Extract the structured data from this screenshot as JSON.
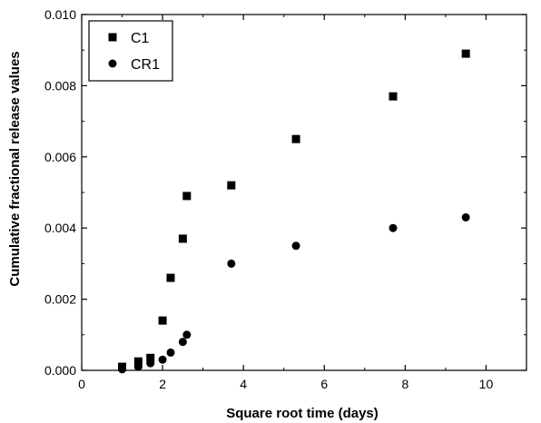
{
  "chart_data": {
    "type": "scatter",
    "title": "",
    "xlabel": "Square root time (days)",
    "ylabel": "Cumulative fractional release values",
    "xlim": [
      0,
      11
    ],
    "ylim": [
      0,
      0.01
    ],
    "xticks": [
      0,
      2,
      4,
      6,
      8,
      10
    ],
    "xtick_labels": [
      "0",
      "2",
      "4",
      "6",
      "8",
      "10"
    ],
    "yticks": [
      0,
      0.002,
      0.004,
      0.006,
      0.008,
      0.01
    ],
    "ytick_labels": [
      "0.000",
      "0.002",
      "0.004",
      "0.006",
      "0.008",
      "0.010"
    ],
    "grid": false,
    "legend_position": "top-left",
    "series": [
      {
        "name": "C1",
        "marker": "square",
        "color": "#000000",
        "points": [
          {
            "x": 1.0,
            "y": 0.0001
          },
          {
            "x": 1.4,
            "y": 0.00025
          },
          {
            "x": 1.7,
            "y": 0.00035
          },
          {
            "x": 2.0,
            "y": 0.0014
          },
          {
            "x": 2.2,
            "y": 0.0026
          },
          {
            "x": 2.5,
            "y": 0.0037
          },
          {
            "x": 2.6,
            "y": 0.0049
          },
          {
            "x": 3.7,
            "y": 0.0052
          },
          {
            "x": 5.3,
            "y": 0.0065
          },
          {
            "x": 7.7,
            "y": 0.0077
          },
          {
            "x": 9.5,
            "y": 0.0089
          }
        ]
      },
      {
        "name": "CR1",
        "marker": "circle",
        "color": "#000000",
        "points": [
          {
            "x": 1.0,
            "y": 3e-05
          },
          {
            "x": 1.4,
            "y": 0.0001
          },
          {
            "x": 1.7,
            "y": 0.0002
          },
          {
            "x": 2.0,
            "y": 0.0003
          },
          {
            "x": 2.2,
            "y": 0.0005
          },
          {
            "x": 2.5,
            "y": 0.0008
          },
          {
            "x": 2.6,
            "y": 0.001
          },
          {
            "x": 3.7,
            "y": 0.003
          },
          {
            "x": 5.3,
            "y": 0.0035
          },
          {
            "x": 7.7,
            "y": 0.004
          },
          {
            "x": 9.5,
            "y": 0.0043
          }
        ]
      }
    ]
  }
}
